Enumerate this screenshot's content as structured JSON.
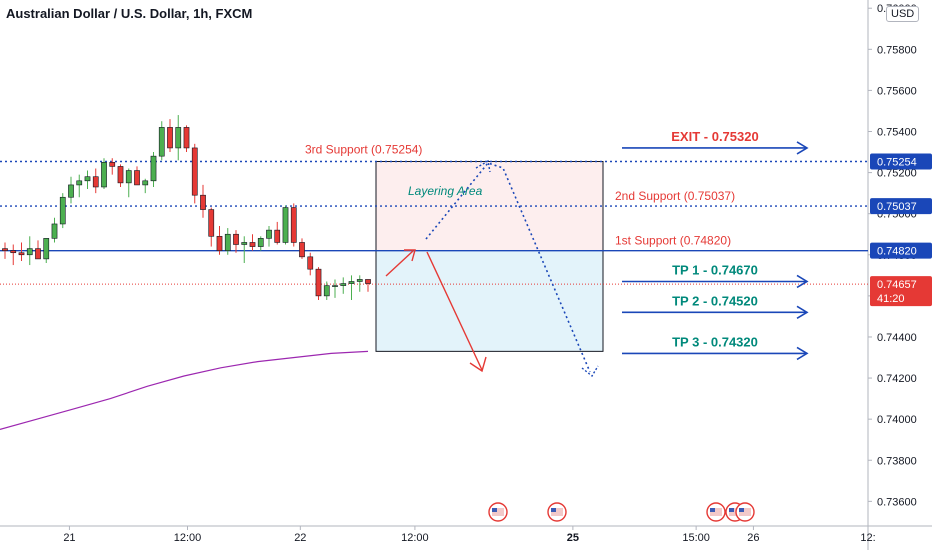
{
  "title": "Australian Dollar / U.S. Dollar, 1h, FXCM",
  "currency": "USD",
  "countdown": "41:20",
  "colors": {
    "bull": "#4caf50",
    "bear": "#e53935",
    "blue": "#1a47b8",
    "red_text": "#e53935",
    "teal": "#00897b",
    "ma": "#9c27b0",
    "current": "#e53935",
    "zone_top": "#fdeeee",
    "zone_bottom": "#e3f3fa"
  },
  "annotations": {
    "support3": "3rd Support (0.75254)",
    "support2": "2nd Support (0.75037)",
    "support1": "1st Support (0.74820)",
    "layering": "Layering Area",
    "exit": "EXIT - 0.75320",
    "tp1": "TP 1 - 0.74670",
    "tp2": "TP 2 - 0.74520",
    "tp3": "TP 3 - 0.74320"
  },
  "chart_data": {
    "type": "candlestick",
    "title": "Australian Dollar / U.S. Dollar, 1h, FXCM",
    "ylim": [
      0.7348,
      0.7604
    ],
    "y_ticks": [
      "0.73600",
      "0.73800",
      "0.74000",
      "0.74200",
      "0.74400",
      "0.74600",
      "0.74800",
      "0.75000",
      "0.75200",
      "0.75400",
      "0.75600",
      "0.75800",
      "0.76000"
    ],
    "x_ticks": [
      "21",
      "12:00",
      "22",
      "12:00",
      "25",
      "15:00",
      "26",
      "12:"
    ],
    "price_labels": [
      "0.75254",
      "0.75037",
      "0.74820",
      "0.74657"
    ],
    "current_price": 0.74657,
    "levels": {
      "support3": 0.75254,
      "support2": 0.75037,
      "support1": 0.7482,
      "exit": 0.7532,
      "tp1": 0.7467,
      "tp2": 0.7452,
      "tp3": 0.7432
    },
    "candles": [
      {
        "o": 0.7483,
        "h": 0.7486,
        "l": 0.7478,
        "c": 0.7482
      },
      {
        "o": 0.7482,
        "h": 0.7485,
        "l": 0.7475,
        "c": 0.7481
      },
      {
        "o": 0.7481,
        "h": 0.7486,
        "l": 0.7477,
        "c": 0.748
      },
      {
        "o": 0.748,
        "h": 0.7489,
        "l": 0.7475,
        "c": 0.7483
      },
      {
        "o": 0.7483,
        "h": 0.7487,
        "l": 0.7478,
        "c": 0.7478
      },
      {
        "o": 0.7478,
        "h": 0.7488,
        "l": 0.7476,
        "c": 0.7488
      },
      {
        "o": 0.7488,
        "h": 0.7498,
        "l": 0.7486,
        "c": 0.7495
      },
      {
        "o": 0.7495,
        "h": 0.751,
        "l": 0.7493,
        "c": 0.7508
      },
      {
        "o": 0.7508,
        "h": 0.7518,
        "l": 0.7505,
        "c": 0.7514
      },
      {
        "o": 0.7514,
        "h": 0.7519,
        "l": 0.7508,
        "c": 0.7516
      },
      {
        "o": 0.7516,
        "h": 0.7521,
        "l": 0.7512,
        "c": 0.7518
      },
      {
        "o": 0.7518,
        "h": 0.7522,
        "l": 0.751,
        "c": 0.7513
      },
      {
        "o": 0.7513,
        "h": 0.7527,
        "l": 0.7512,
        "c": 0.7525
      },
      {
        "o": 0.7525,
        "h": 0.7527,
        "l": 0.7519,
        "c": 0.7523
      },
      {
        "o": 0.7523,
        "h": 0.7524,
        "l": 0.7513,
        "c": 0.7515
      },
      {
        "o": 0.7515,
        "h": 0.7522,
        "l": 0.7508,
        "c": 0.7521
      },
      {
        "o": 0.7521,
        "h": 0.7523,
        "l": 0.7514,
        "c": 0.7514
      },
      {
        "o": 0.7514,
        "h": 0.7517,
        "l": 0.751,
        "c": 0.7516
      },
      {
        "o": 0.7516,
        "h": 0.753,
        "l": 0.7513,
        "c": 0.7528
      },
      {
        "o": 0.7528,
        "h": 0.7545,
        "l": 0.7526,
        "c": 0.7542
      },
      {
        "o": 0.7542,
        "h": 0.7546,
        "l": 0.753,
        "c": 0.7532
      },
      {
        "o": 0.7532,
        "h": 0.7548,
        "l": 0.7526,
        "c": 0.7542
      },
      {
        "o": 0.7542,
        "h": 0.7543,
        "l": 0.753,
        "c": 0.7532
      },
      {
        "o": 0.7532,
        "h": 0.7534,
        "l": 0.7505,
        "c": 0.7509
      },
      {
        "o": 0.7509,
        "h": 0.7514,
        "l": 0.7498,
        "c": 0.7502
      },
      {
        "o": 0.7502,
        "h": 0.7503,
        "l": 0.7484,
        "c": 0.7489
      },
      {
        "o": 0.7489,
        "h": 0.7494,
        "l": 0.748,
        "c": 0.7482
      },
      {
        "o": 0.7482,
        "h": 0.7493,
        "l": 0.748,
        "c": 0.749
      },
      {
        "o": 0.749,
        "h": 0.7492,
        "l": 0.7481,
        "c": 0.7485
      },
      {
        "o": 0.7485,
        "h": 0.7489,
        "l": 0.7476,
        "c": 0.7486
      },
      {
        "o": 0.7486,
        "h": 0.749,
        "l": 0.7482,
        "c": 0.7484
      },
      {
        "o": 0.7484,
        "h": 0.7489,
        "l": 0.7482,
        "c": 0.7488
      },
      {
        "o": 0.7488,
        "h": 0.7494,
        "l": 0.7484,
        "c": 0.7492
      },
      {
        "o": 0.7492,
        "h": 0.7496,
        "l": 0.7485,
        "c": 0.7486
      },
      {
        "o": 0.7486,
        "h": 0.7504,
        "l": 0.7485,
        "c": 0.7503
      },
      {
        "o": 0.7503,
        "h": 0.7505,
        "l": 0.7484,
        "c": 0.7486
      },
      {
        "o": 0.7486,
        "h": 0.7488,
        "l": 0.7478,
        "c": 0.7479
      },
      {
        "o": 0.7479,
        "h": 0.7481,
        "l": 0.747,
        "c": 0.7473
      },
      {
        "o": 0.7473,
        "h": 0.7474,
        "l": 0.7458,
        "c": 0.746
      },
      {
        "o": 0.746,
        "h": 0.7467,
        "l": 0.7458,
        "c": 0.7465
      },
      {
        "o": 0.7465,
        "h": 0.7468,
        "l": 0.7459,
        "c": 0.7465
      },
      {
        "o": 0.7465,
        "h": 0.7469,
        "l": 0.7461,
        "c": 0.7466
      },
      {
        "o": 0.7466,
        "h": 0.747,
        "l": 0.7458,
        "c": 0.7467
      },
      {
        "o": 0.7467,
        "h": 0.747,
        "l": 0.7462,
        "c": 0.7468
      },
      {
        "o": 0.7468,
        "h": 0.7468,
        "l": 0.7462,
        "c": 0.7466
      }
    ],
    "ma_series": [
      0.7395,
      0.74,
      0.7405,
      0.741,
      0.7416,
      0.7421,
      0.7425,
      0.7428,
      0.743,
      0.7432,
      0.7433
    ]
  }
}
